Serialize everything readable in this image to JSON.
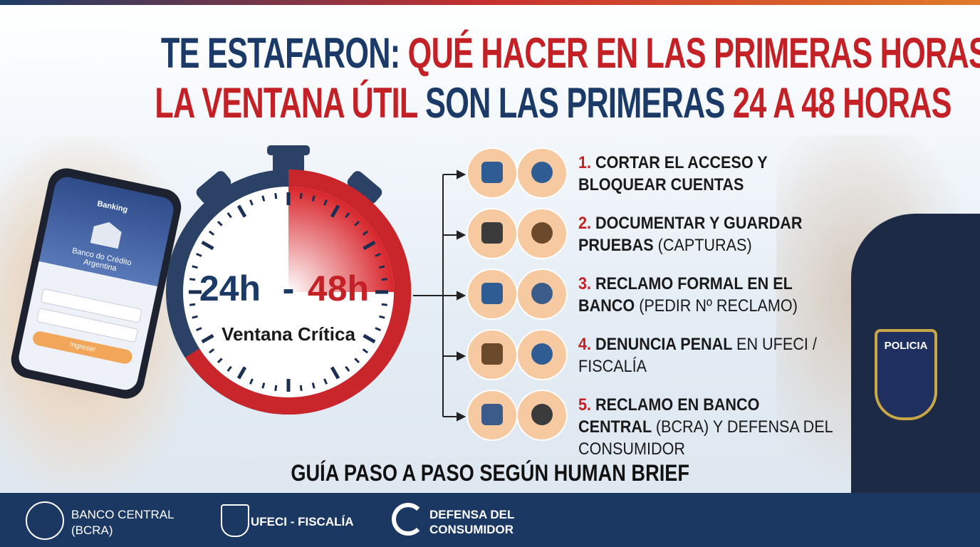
{
  "header": {
    "line1": {
      "blue": "TE ESTAFARON:",
      "red": "QUÉ HACER EN LAS PRIMERAS HORAS"
    },
    "line2": {
      "red_a": "LA VENTANA ÚTIL",
      "blue": "SON LAS PRIMERAS",
      "red_b": "24 A 48 HORAS"
    }
  },
  "phone": {
    "app": "Banking",
    "bank": "Banco do Crédito Argentina",
    "button": "Ingresar"
  },
  "timer": {
    "from": "24h",
    "dash": "-",
    "to": "48h",
    "caption": "Ventana Crítica"
  },
  "steps": [
    {
      "number": "1.",
      "bold": "CORTAR EL ACCESO Y BLOQUEAR CUENTAS",
      "light": ""
    },
    {
      "number": "2.",
      "bold": "DOCUMENTAR Y GUARDAR PRUEBAS",
      "light": "(CAPTURAS)"
    },
    {
      "number": "3.",
      "bold": "RECLAMO FORMAL EN EL BANCO",
      "light": "(PEDIR Nº RECLAMO)"
    },
    {
      "number": "4.",
      "bold": "DENUNCIA PENAL",
      "light": "EN UFECI / FISCALÍA"
    },
    {
      "number": "5.",
      "bold": "RECLAMO EN BANCO CENTRAL",
      "light": "(BCRA) Y DEFENSA DEL CONSUMIDOR"
    }
  ],
  "badge": "POLICIA",
  "guide": "GUÍA PASO A PASO SEGÚN HUMAN BRIEF",
  "footer": {
    "bcra": "BANCO CENTRAL (BCRA)",
    "ufeci": "UFECI - FISCALÍA",
    "defensa": "DEFENSA DEL CONSUMIDOR"
  }
}
